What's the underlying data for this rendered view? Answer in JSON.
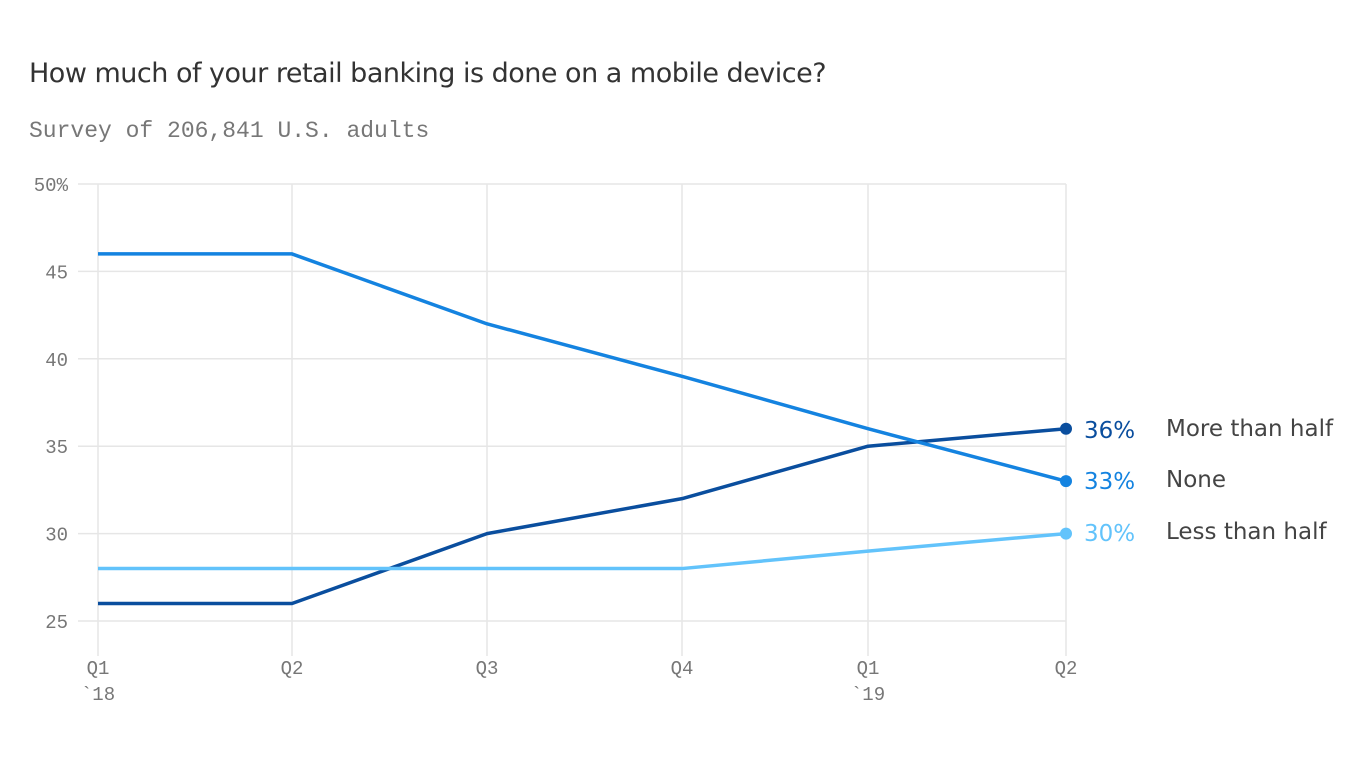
{
  "chart_data": {
    "type": "line",
    "title": "How much of your retail banking is done on a mobile device?",
    "subtitle": "Survey of 206,841 U.S. adults",
    "categories": [
      "Q1 `18",
      "Q2",
      "Q3",
      "Q4",
      "Q1 `19",
      "Q2"
    ],
    "x_tick_labels": [
      [
        "Q1",
        "`18"
      ],
      [
        "Q2",
        ""
      ],
      [
        "Q3",
        ""
      ],
      [
        "Q4",
        ""
      ],
      [
        "Q1",
        "`19"
      ],
      [
        "Q2",
        ""
      ]
    ],
    "y_ticks": [
      25,
      30,
      35,
      40,
      45,
      50
    ],
    "y_tick_labels": [
      "25",
      "30",
      "35",
      "40",
      "45",
      "50%"
    ],
    "ylim": [
      23,
      50
    ],
    "grid": true,
    "series": [
      {
        "name": "More than half",
        "values": [
          26,
          26,
          30,
          32,
          35,
          36
        ],
        "end_label": "36%",
        "color": "#0a4e9e"
      },
      {
        "name": "None",
        "values": [
          46,
          46,
          42,
          39,
          36,
          33
        ],
        "end_label": "33%",
        "color": "#1483e0"
      },
      {
        "name": "Less than half",
        "values": [
          28,
          28,
          28,
          28,
          29,
          30
        ],
        "end_label": "30%",
        "color": "#62c3fb"
      }
    ]
  }
}
